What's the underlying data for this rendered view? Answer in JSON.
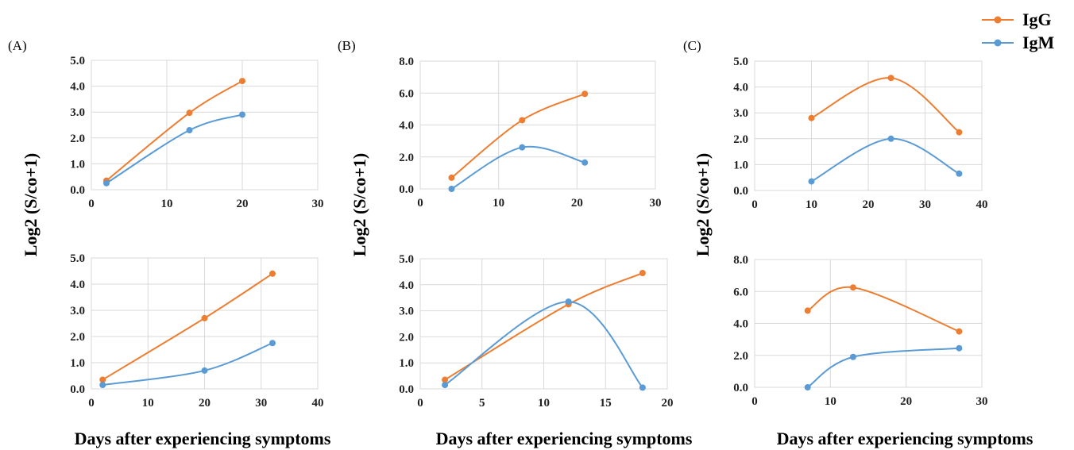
{
  "panel_labels": [
    "(A)",
    "(B)",
    "(C)"
  ],
  "ylabel": "Log2 (S/co+1)",
  "xlabel": "Days after experiencing symptoms",
  "legend": [
    {
      "name": "IgG",
      "color": "#ED7D31"
    },
    {
      "name": "IgM",
      "color": "#5B9BD5"
    }
  ],
  "chart_data": [
    {
      "type": "line",
      "panel": "(A)",
      "row": "top",
      "xlim": [
        0,
        30
      ],
      "xticks": [
        "0",
        "10",
        "20",
        "30"
      ],
      "ylim": [
        0,
        5
      ],
      "yticks": [
        "0.0",
        "1.0",
        "2.0",
        "3.0",
        "4.0",
        "5.0"
      ],
      "grid": true,
      "smooth": true,
      "series": [
        {
          "name": "IgG",
          "color": "#ED7D31",
          "x": [
            2,
            13,
            20
          ],
          "y": [
            0.35,
            2.97,
            4.2
          ]
        },
        {
          "name": "IgM",
          "color": "#5B9BD5",
          "x": [
            2,
            13,
            20
          ],
          "y": [
            0.25,
            2.3,
            2.9
          ]
        }
      ]
    },
    {
      "type": "line",
      "panel": "(B)",
      "row": "top",
      "xlim": [
        0,
        30
      ],
      "xticks": [
        "0",
        "10",
        "20",
        "30"
      ],
      "ylim": [
        0,
        8
      ],
      "yticks": [
        "0.0",
        "2.0",
        "4.0",
        "6.0",
        "8.0"
      ],
      "grid": true,
      "smooth": true,
      "series": [
        {
          "name": "IgG",
          "color": "#ED7D31",
          "x": [
            4,
            13,
            21
          ],
          "y": [
            0.7,
            4.3,
            5.95
          ]
        },
        {
          "name": "IgM",
          "color": "#5B9BD5",
          "x": [
            4,
            13,
            21
          ],
          "y": [
            0.0,
            2.6,
            1.65
          ]
        }
      ]
    },
    {
      "type": "line",
      "panel": "(C)",
      "row": "top",
      "xlim": [
        0,
        40
      ],
      "xticks": [
        "0",
        "10",
        "20",
        "30",
        "40"
      ],
      "ylim": [
        0,
        5
      ],
      "yticks": [
        "0.0",
        "1.0",
        "2.0",
        "3.0",
        "4.0",
        "5.0"
      ],
      "grid": true,
      "smooth": true,
      "series": [
        {
          "name": "IgG",
          "color": "#ED7D31",
          "x": [
            10,
            24,
            36
          ],
          "y": [
            2.8,
            4.35,
            2.25
          ]
        },
        {
          "name": "IgM",
          "color": "#5B9BD5",
          "x": [
            10,
            24,
            36
          ],
          "y": [
            0.35,
            2.0,
            0.65
          ]
        }
      ]
    },
    {
      "type": "line",
      "panel": "(A)",
      "row": "bottom",
      "xlim": [
        0,
        40
      ],
      "xticks": [
        "0",
        "10",
        "20",
        "30",
        "40"
      ],
      "ylim": [
        0,
        5
      ],
      "yticks": [
        "0.0",
        "1.0",
        "2.0",
        "3.0",
        "4.0",
        "5.0"
      ],
      "grid": true,
      "smooth": true,
      "series": [
        {
          "name": "IgG",
          "color": "#ED7D31",
          "x": [
            2,
            20,
            32
          ],
          "y": [
            0.35,
            2.7,
            4.4
          ]
        },
        {
          "name": "IgM",
          "color": "#5B9BD5",
          "x": [
            2,
            20,
            32
          ],
          "y": [
            0.15,
            0.7,
            1.75
          ]
        }
      ]
    },
    {
      "type": "line",
      "panel": "(B)",
      "row": "bottom",
      "xlim": [
        0,
        20
      ],
      "xticks": [
        "0",
        "5",
        "10",
        "15",
        "20"
      ],
      "ylim": [
        0,
        5
      ],
      "yticks": [
        "0.0",
        "1.0",
        "2.0",
        "3.0",
        "4.0",
        "5.0"
      ],
      "grid": true,
      "smooth": true,
      "series": [
        {
          "name": "IgG",
          "color": "#ED7D31",
          "x": [
            2,
            12,
            18
          ],
          "y": [
            0.35,
            3.25,
            4.45
          ]
        },
        {
          "name": "IgM",
          "color": "#5B9BD5",
          "x": [
            2,
            12,
            18
          ],
          "y": [
            0.15,
            3.35,
            0.05
          ]
        }
      ]
    },
    {
      "type": "line",
      "panel": "(C)",
      "row": "bottom",
      "xlim": [
        0,
        30
      ],
      "xticks": [
        "0",
        "10",
        "20",
        "30"
      ],
      "ylim": [
        0,
        8
      ],
      "yticks": [
        "0.0",
        "2.0",
        "4.0",
        "6.0",
        "8.0"
      ],
      "grid": true,
      "smooth": true,
      "series": [
        {
          "name": "IgG",
          "color": "#ED7D31",
          "x": [
            7,
            13,
            27
          ],
          "y": [
            4.8,
            6.25,
            3.5
          ]
        },
        {
          "name": "IgM",
          "color": "#5B9BD5",
          "x": [
            7,
            13,
            27
          ],
          "y": [
            0.0,
            1.9,
            2.45
          ]
        }
      ]
    }
  ]
}
